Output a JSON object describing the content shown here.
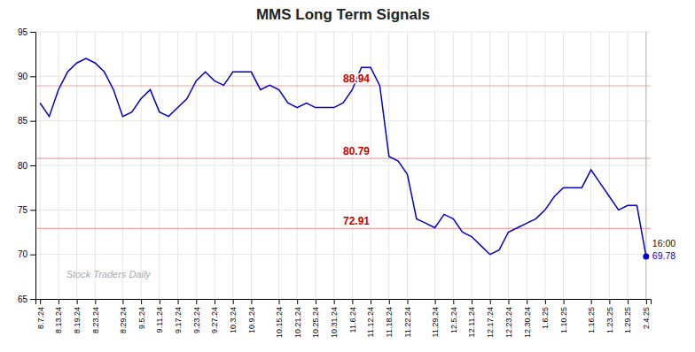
{
  "chart_data": {
    "type": "line",
    "title": "MMS Long Term Signals",
    "watermark": "Stock Traders Daily",
    "color": "#0000cc",
    "grid": true,
    "ylim": [
      65,
      95
    ],
    "yticks": [
      65,
      70,
      75,
      80,
      85,
      90,
      95
    ],
    "hlines": [
      {
        "value": 88.94,
        "label": "88.94",
        "color": "#cc0000"
      },
      {
        "value": 80.79,
        "label": "80.79",
        "color": "#cc0000"
      },
      {
        "value": 72.91,
        "label": "72.91",
        "color": "#cc0000"
      }
    ],
    "annotations": [
      {
        "text": "16:00",
        "color": "#111111"
      },
      {
        "text": "69.78",
        "color": "#0000cc"
      }
    ],
    "categories": [
      "8.7.24",
      null,
      "8.13.24",
      null,
      "8.19.24",
      null,
      "8.23.24",
      null,
      null,
      "8.29.24",
      null,
      "9.5.24",
      null,
      "9.11.24",
      null,
      "9.17.24",
      null,
      "9.23.24",
      null,
      "9.27.24",
      null,
      "10.3.24",
      null,
      "10.9.24",
      null,
      null,
      "10.15.24",
      null,
      "10.21.24",
      null,
      "10.25.24",
      null,
      "10.31.24",
      null,
      "11.6.24",
      null,
      "11.12.24",
      null,
      "11.18.24",
      null,
      "11.22.24",
      null,
      null,
      "11.29.24",
      null,
      "12.5.24",
      null,
      "12.11.24",
      null,
      "12.17.24",
      null,
      "12.23.24",
      null,
      "12.30.24",
      null,
      "1.6.25",
      null,
      "1.10.25",
      null,
      null,
      "1.16.25",
      null,
      "1.23.25",
      null,
      "1.29.25",
      null,
      "2.4.25"
    ],
    "values": [
      87.0,
      85.5,
      88.5,
      90.5,
      91.5,
      92.0,
      91.5,
      90.5,
      88.5,
      85.5,
      86.0,
      87.5,
      88.5,
      86.0,
      85.5,
      86.5,
      87.5,
      89.5,
      90.5,
      89.5,
      89.0,
      90.5,
      90.5,
      90.5,
      88.5,
      89.0,
      88.5,
      87.0,
      86.5,
      87.0,
      86.5,
      86.5,
      86.5,
      87.0,
      88.5,
      91.0,
      91.0,
      88.94,
      81.0,
      80.5,
      79.0,
      74.0,
      73.5,
      73.0,
      74.5,
      74.0,
      72.5,
      72.0,
      71.0,
      70.0,
      70.5,
      72.5,
      73.0,
      73.5,
      74.0,
      75.0,
      76.5,
      77.5,
      77.5,
      77.5,
      79.5,
      78.0,
      76.5,
      75.0,
      75.5,
      75.5,
      69.78
    ]
  }
}
